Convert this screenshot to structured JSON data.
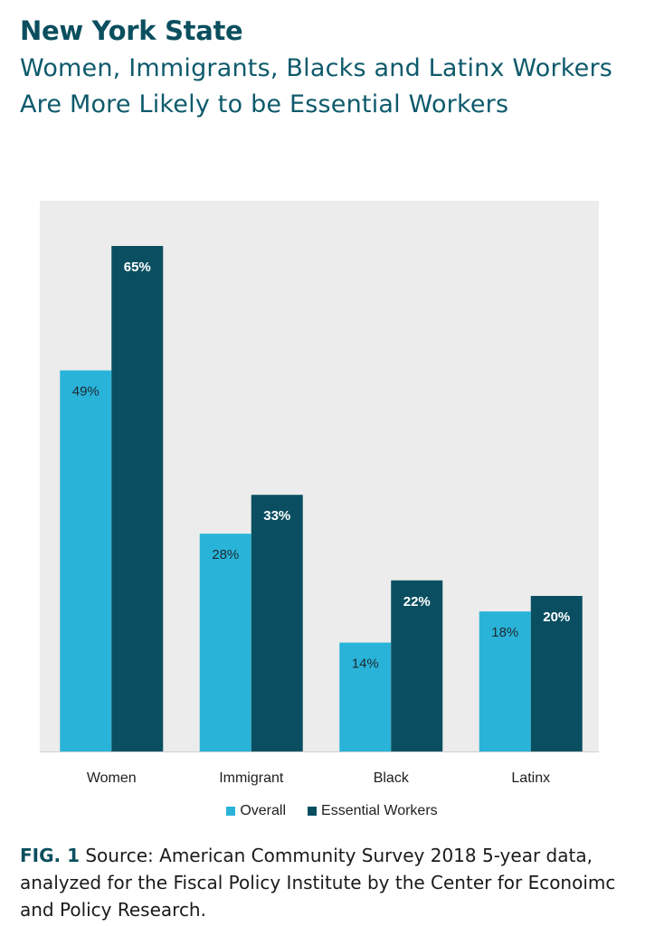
{
  "header": {
    "title": "New York State",
    "subtitle": "Women, Immigrants, Blacks and Latinx Workers Are More Likely to be Essential Workers"
  },
  "colors": {
    "overall": "#29b3d9",
    "essential": "#0a4f61",
    "plot_background": "#ececec",
    "title": "#0b4f5f"
  },
  "chart_data": {
    "type": "bar",
    "title": "",
    "xlabel": "",
    "ylabel": "",
    "ylim": [
      0,
      70
    ],
    "grid": false,
    "legend_position": "bottom-center",
    "categories": [
      "Women",
      "Immigrant",
      "Black",
      "Latinx"
    ],
    "series": [
      {
        "name": "Overall",
        "values": [
          49,
          28,
          14,
          18
        ],
        "labels": [
          "49%",
          "28%",
          "14%",
          "18%"
        ]
      },
      {
        "name": "Essential Workers",
        "values": [
          65,
          33,
          22,
          20
        ],
        "labels": [
          "65%",
          "33%",
          "22%",
          "20%"
        ]
      }
    ]
  },
  "caption": {
    "label": "FIG. 1",
    "text": " Source: American Community Survey 2018 5-year data, analyzed for the Fiscal Policy Institute by the Center for Econoimc and Policy Research."
  }
}
